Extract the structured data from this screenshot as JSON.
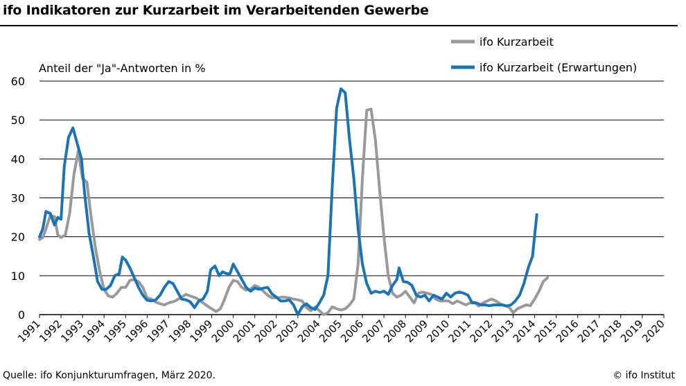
{
  "title": "ifo Indikatoren zur Kurzarbeit im Verarbeitenden Gewerbe",
  "source": "Quelle: ifo Konjunkturumfragen, März 2020.",
  "copyright": "© ifo Institut",
  "chart_data": {
    "type": "line",
    "ylabel": "Anteil der \"Ja\"-Antworten in %",
    "ylim": [
      0,
      60
    ],
    "yticks": [
      0,
      10,
      20,
      30,
      40,
      50,
      60
    ],
    "xlim": [
      1991,
      2020
    ],
    "xticks": [
      "1991",
      "1992",
      "1993",
      "1994",
      "1995",
      "1996",
      "1997",
      "1998",
      "1999",
      "2000",
      "2001",
      "2002",
      "2003",
      "2004",
      "2005",
      "2006",
      "2007",
      "2008",
      "2009",
      "2010",
      "2011",
      "2012",
      "2013",
      "2014",
      "2015",
      "2016",
      "2017",
      "2018",
      "2019",
      "2020"
    ],
    "grid": true,
    "legend": "top-right",
    "series": [
      {
        "name": "ifo Kurzarbeit",
        "color": "#999999",
        "points": [
          [
            1991.0,
            19.3
          ],
          [
            1991.15,
            19.8
          ],
          [
            1991.3,
            22
          ],
          [
            1991.5,
            25.5
          ],
          [
            1991.7,
            25.2
          ],
          [
            1991.85,
            20.5
          ],
          [
            1992.0,
            19.8
          ],
          [
            1992.2,
            20.5
          ],
          [
            1992.4,
            26
          ],
          [
            1992.6,
            36
          ],
          [
            1992.8,
            42
          ],
          [
            1993.0,
            35
          ],
          [
            1993.2,
            34
          ],
          [
            1993.4,
            25
          ],
          [
            1993.6,
            17
          ],
          [
            1993.8,
            11
          ],
          [
            1994.0,
            6.5
          ],
          [
            1994.2,
            4.8
          ],
          [
            1994.4,
            4.5
          ],
          [
            1994.6,
            5.5
          ],
          [
            1994.8,
            7
          ],
          [
            1995.0,
            7
          ],
          [
            1995.2,
            8.8
          ],
          [
            1995.4,
            9
          ],
          [
            1995.6,
            8.5
          ],
          [
            1995.8,
            7
          ],
          [
            1996.0,
            4.3
          ],
          [
            1996.2,
            4
          ],
          [
            1996.4,
            3.2
          ],
          [
            1996.6,
            2.8
          ],
          [
            1996.8,
            2.5
          ],
          [
            1997.0,
            3
          ],
          [
            1997.3,
            3.5
          ],
          [
            1997.6,
            4.5
          ],
          [
            1997.8,
            5.2
          ],
          [
            1998.0,
            4.8
          ],
          [
            1998.3,
            4.2
          ],
          [
            1998.6,
            3
          ],
          [
            1998.8,
            2.2
          ],
          [
            1999.0,
            1.5
          ],
          [
            1999.2,
            0.8
          ],
          [
            1999.4,
            1.5
          ],
          [
            1999.6,
            4
          ],
          [
            1999.8,
            7
          ],
          [
            2000.0,
            8.8
          ],
          [
            2000.2,
            8.5
          ],
          [
            2000.4,
            7
          ],
          [
            2000.6,
            6.3
          ],
          [
            2000.8,
            6.5
          ],
          [
            2001.0,
            7.5
          ],
          [
            2001.2,
            7
          ],
          [
            2001.4,
            6
          ],
          [
            2001.6,
            5
          ],
          [
            2001.8,
            4.3
          ],
          [
            2002.0,
            4.3
          ],
          [
            2002.3,
            4.5
          ],
          [
            2002.6,
            4.3
          ],
          [
            2002.8,
            4
          ],
          [
            2003.0,
            3.8
          ],
          [
            2003.2,
            3.5
          ],
          [
            2003.4,
            1.8
          ],
          [
            2003.6,
            1
          ],
          [
            2003.8,
            2
          ],
          [
            2004.0,
            1
          ],
          [
            2004.2,
            0
          ],
          [
            2004.4,
            0.5
          ],
          [
            2004.6,
            2
          ],
          [
            2004.8,
            1.5
          ],
          [
            2005.0,
            1.2
          ],
          [
            2005.2,
            1.5
          ],
          [
            2005.4,
            2.5
          ],
          [
            2005.6,
            4
          ],
          [
            2005.8,
            13
          ],
          [
            2006.0,
            35
          ],
          [
            2006.2,
            52.5
          ],
          [
            2006.4,
            52.8
          ],
          [
            2006.6,
            45
          ],
          [
            2006.8,
            32
          ],
          [
            2007.0,
            20
          ],
          [
            2007.2,
            10
          ],
          [
            2007.4,
            5.5
          ],
          [
            2007.6,
            4.5
          ],
          [
            2007.8,
            5
          ],
          [
            2008.0,
            6
          ],
          [
            2008.2,
            4.5
          ],
          [
            2008.4,
            3
          ],
          [
            2008.6,
            5.5
          ],
          [
            2008.8,
            5.8
          ],
          [
            2009.0,
            5.5
          ],
          [
            2009.2,
            5.2
          ],
          [
            2009.4,
            4
          ],
          [
            2009.6,
            3.5
          ],
          [
            2009.8,
            3.5
          ],
          [
            2010.0,
            3.5
          ],
          [
            2010.2,
            2.8
          ],
          [
            2010.4,
            3.5
          ],
          [
            2010.6,
            3
          ],
          [
            2010.8,
            2.5
          ],
          [
            2011.0,
            3
          ],
          [
            2011.2,
            3.2
          ],
          [
            2011.4,
            2.2
          ],
          [
            2011.6,
            3
          ],
          [
            2011.8,
            3.5
          ],
          [
            2012.0,
            4
          ],
          [
            2012.2,
            3.5
          ],
          [
            2012.4,
            2.8
          ],
          [
            2012.6,
            2.3
          ],
          [
            2012.8,
            2
          ],
          [
            2013.0,
            0.5
          ],
          [
            2013.2,
            1.5
          ],
          [
            2013.4,
            2
          ],
          [
            2013.6,
            2.5
          ],
          [
            2013.8,
            2.3
          ],
          [
            2014.0,
            4
          ],
          [
            2014.2,
            6
          ],
          [
            2014.4,
            8.5
          ],
          [
            2014.6,
            9.5
          ]
        ]
      },
      {
        "name": "ifo Kurzarbeit (Erwartungen)",
        "color": "#1a73b5",
        "points": [
          [
            1991.0,
            20
          ],
          [
            1991.15,
            22
          ],
          [
            1991.3,
            26.5
          ],
          [
            1991.5,
            26
          ],
          [
            1991.7,
            23
          ],
          [
            1991.85,
            25
          ],
          [
            1992.0,
            24.5
          ],
          [
            1992.15,
            38
          ],
          [
            1992.35,
            45.5
          ],
          [
            1992.55,
            48
          ],
          [
            1992.75,
            44
          ],
          [
            1992.95,
            40
          ],
          [
            1993.1,
            31
          ],
          [
            1993.3,
            21
          ],
          [
            1993.5,
            15
          ],
          [
            1993.7,
            8.5
          ],
          [
            1993.9,
            6.5
          ],
          [
            1994.1,
            6.5
          ],
          [
            1994.3,
            7.5
          ],
          [
            1994.5,
            10
          ],
          [
            1994.7,
            10.5
          ],
          [
            1994.85,
            14.8
          ],
          [
            1995.0,
            14
          ],
          [
            1995.2,
            12
          ],
          [
            1995.4,
            9.5
          ],
          [
            1995.6,
            7
          ],
          [
            1995.8,
            5
          ],
          [
            1996.0,
            3.7
          ],
          [
            1996.2,
            3.5
          ],
          [
            1996.4,
            3.8
          ],
          [
            1996.6,
            5
          ],
          [
            1996.8,
            7
          ],
          [
            1997.0,
            8.5
          ],
          [
            1997.2,
            8
          ],
          [
            1997.4,
            6
          ],
          [
            1997.6,
            4
          ],
          [
            1997.8,
            3.8
          ],
          [
            1998.0,
            3.3
          ],
          [
            1998.2,
            1.8
          ],
          [
            1998.4,
            3.5
          ],
          [
            1998.6,
            4
          ],
          [
            1998.8,
            6
          ],
          [
            1998.95,
            11.5
          ],
          [
            1999.15,
            12.5
          ],
          [
            1999.35,
            10
          ],
          [
            1999.5,
            11
          ],
          [
            1999.7,
            10.5
          ],
          [
            1999.85,
            10.5
          ],
          [
            2000.0,
            13
          ],
          [
            2000.2,
            11
          ],
          [
            2000.4,
            9
          ],
          [
            2000.6,
            7
          ],
          [
            2000.8,
            6
          ],
          [
            2001.0,
            6.8
          ],
          [
            2001.2,
            6.5
          ],
          [
            2001.4,
            6.8
          ],
          [
            2001.6,
            7
          ],
          [
            2001.8,
            5.3
          ],
          [
            2002.0,
            4.5
          ],
          [
            2002.2,
            3.5
          ],
          [
            2002.4,
            3.5
          ],
          [
            2002.6,
            3.8
          ],
          [
            2002.8,
            2.5
          ],
          [
            2003.0,
            0
          ],
          [
            2003.2,
            2
          ],
          [
            2003.4,
            2.8
          ],
          [
            2003.6,
            1.8
          ],
          [
            2003.8,
            1.3
          ],
          [
            2004.0,
            3
          ],
          [
            2004.2,
            5
          ],
          [
            2004.4,
            10
          ],
          [
            2004.6,
            33
          ],
          [
            2004.8,
            53
          ],
          [
            2005.0,
            58
          ],
          [
            2005.2,
            57
          ],
          [
            2005.4,
            45
          ],
          [
            2005.6,
            35
          ],
          [
            2005.8,
            22
          ],
          [
            2006.0,
            13
          ],
          [
            2006.2,
            8
          ],
          [
            2006.4,
            5.5
          ],
          [
            2006.6,
            6
          ],
          [
            2006.8,
            5.7
          ],
          [
            2007.0,
            6
          ],
          [
            2007.2,
            5.2
          ],
          [
            2007.4,
            7.5
          ],
          [
            2007.6,
            9
          ],
          [
            2007.7,
            12
          ],
          [
            2007.9,
            8.5
          ],
          [
            2008.1,
            8.3
          ],
          [
            2008.3,
            7.5
          ],
          [
            2008.5,
            5
          ],
          [
            2008.7,
            4.5
          ],
          [
            2008.9,
            5
          ],
          [
            2009.1,
            3.5
          ],
          [
            2009.3,
            5
          ],
          [
            2009.5,
            4.5
          ],
          [
            2009.7,
            4
          ],
          [
            2009.9,
            5.5
          ],
          [
            2010.1,
            4.5
          ],
          [
            2010.3,
            5.5
          ],
          [
            2010.5,
            5.8
          ],
          [
            2010.7,
            5.5
          ],
          [
            2010.9,
            5
          ],
          [
            2011.1,
            3
          ],
          [
            2011.3,
            3
          ],
          [
            2011.5,
            2.5
          ],
          [
            2011.7,
            2.5
          ],
          [
            2011.9,
            2.3
          ],
          [
            2012.1,
            2.5
          ],
          [
            2012.3,
            2.5
          ],
          [
            2012.5,
            2.5
          ],
          [
            2012.7,
            2.2
          ],
          [
            2012.9,
            2.5
          ],
          [
            2013.1,
            3.5
          ],
          [
            2013.3,
            5
          ],
          [
            2013.5,
            8
          ],
          [
            2013.7,
            12
          ],
          [
            2013.9,
            15
          ],
          [
            2014.1,
            25.7
          ]
        ]
      }
    ]
  }
}
